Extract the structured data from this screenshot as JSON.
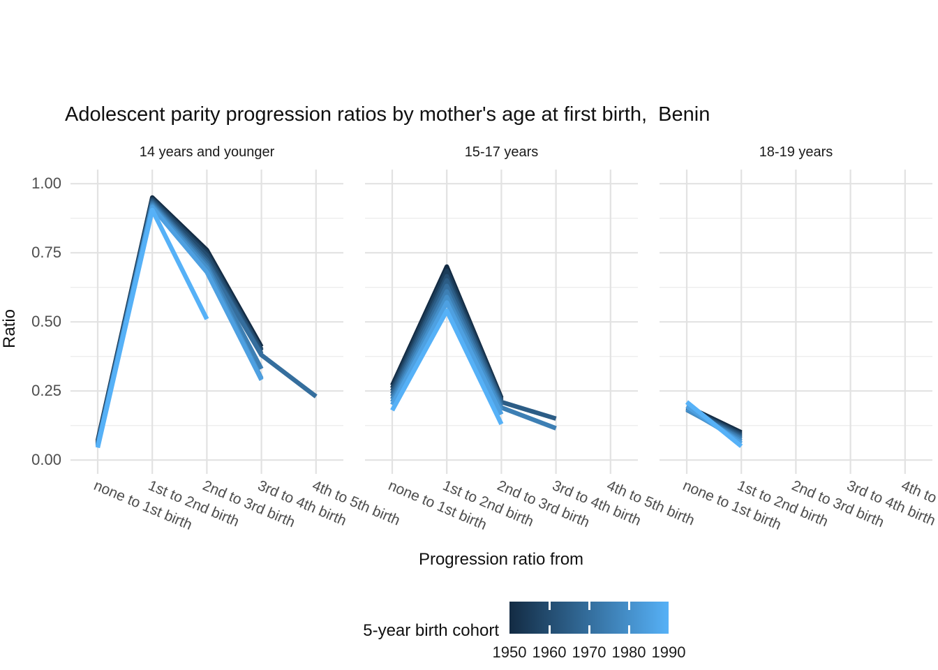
{
  "chart_data": {
    "type": "line",
    "title": "Adolescent parity progression ratios by mother's age at first birth,  Benin",
    "xlabel": "Progression ratio from",
    "ylabel": "Ratio",
    "ylim": [
      0.0,
      1.0
    ],
    "y_ticks": [
      "0.00",
      "0.25",
      "0.50",
      "0.75",
      "1.00"
    ],
    "grid": {
      "on": true,
      "major_color": "#e2e2e2",
      "minor_color": "#ededed"
    },
    "categories": [
      "none to 1st birth",
      "1st to 2nd birth",
      "2nd to 3rd birth",
      "3rd to 4th birth",
      "4th to 5th birth"
    ],
    "cohorts": [
      {
        "year": 1950,
        "color": "#132B43"
      },
      {
        "year": 1955,
        "color": "#1B3C59"
      },
      {
        "year": 1960,
        "color": "#244D70"
      },
      {
        "year": 1965,
        "color": "#2C5D86"
      },
      {
        "year": 1970,
        "color": "#356E9D"
      },
      {
        "year": 1975,
        "color": "#3D7FB4"
      },
      {
        "year": 1980,
        "color": "#4590CA"
      },
      {
        "year": 1985,
        "color": "#4EA0E1"
      },
      {
        "year": 1990,
        "color": "#56B1F7"
      }
    ],
    "facets": [
      {
        "label": "14 years and younger",
        "values": [
          [
            0.07,
            0.95,
            0.76,
            0.41,
            null
          ],
          [
            0.065,
            0.945,
            0.75,
            0.4,
            null
          ],
          [
            0.062,
            0.94,
            0.74,
            0.395,
            null
          ],
          [
            0.06,
            0.935,
            0.725,
            0.385,
            null
          ],
          [
            0.058,
            0.93,
            0.715,
            0.38,
            0.23
          ],
          [
            0.055,
            0.925,
            0.705,
            0.33,
            null
          ],
          [
            0.052,
            0.92,
            0.695,
            0.295,
            null
          ],
          [
            0.05,
            0.915,
            0.68,
            0.29,
            null
          ],
          [
            0.045,
            0.905,
            0.51,
            null,
            null
          ]
        ]
      },
      {
        "label": "15-17 years",
        "values": [
          [
            0.27,
            0.7,
            0.225,
            null,
            null
          ],
          [
            0.26,
            0.685,
            0.22,
            null,
            null
          ],
          [
            0.25,
            0.665,
            0.215,
            null,
            null
          ],
          [
            0.24,
            0.65,
            0.21,
            0.15,
            null
          ],
          [
            0.23,
            0.63,
            0.2,
            null,
            null
          ],
          [
            0.22,
            0.61,
            0.19,
            0.115,
            null
          ],
          [
            0.21,
            0.59,
            0.18,
            null,
            null
          ],
          [
            0.2,
            0.57,
            0.165,
            null,
            null
          ],
          [
            0.18,
            0.54,
            0.13,
            null,
            null
          ]
        ]
      },
      {
        "label": "18-19 years",
        "values": [
          [
            0.195,
            0.1,
            null,
            null,
            null
          ],
          [
            0.19,
            0.095,
            null,
            null,
            null
          ],
          [
            0.188,
            0.09,
            null,
            null,
            null
          ],
          [
            0.185,
            0.085,
            null,
            null,
            null
          ],
          [
            0.182,
            0.08,
            null,
            null,
            null
          ],
          [
            0.182,
            0.075,
            null,
            null,
            null
          ],
          [
            0.185,
            0.068,
            null,
            null,
            null
          ],
          [
            0.195,
            0.06,
            null,
            null,
            null
          ],
          [
            0.21,
            0.05,
            null,
            null,
            null
          ]
        ]
      }
    ],
    "legend": {
      "title": "5-year birth cohort",
      "ticks": [
        "1950",
        "1960",
        "1970",
        "1980",
        "1990"
      ],
      "gradient_low": "#132B43",
      "gradient_mid": "#346E9D",
      "gradient_high": "#56B1F7",
      "position": "bottom"
    }
  }
}
